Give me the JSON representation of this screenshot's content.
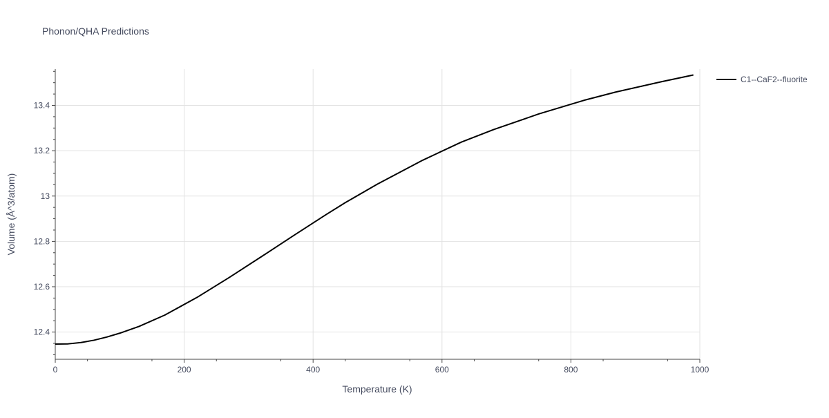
{
  "chart_data": {
    "type": "line",
    "title": "Phonon/QHA Predictions",
    "xlabel": "Temperature (K)",
    "ylabel": "Volume (Å^3/atom)",
    "xlim": [
      0,
      1000
    ],
    "ylim": [
      12.28,
      13.56
    ],
    "xticks": [
      0,
      200,
      400,
      600,
      800,
      1000
    ],
    "xtick_labels": [
      "0",
      "200",
      "400",
      "600",
      "800",
      "1000"
    ],
    "yticks": [
      12.4,
      12.6,
      12.8,
      13.0,
      13.2,
      13.4
    ],
    "ytick_labels": [
      "12.4",
      "12.6",
      "12.8",
      "13",
      "13.2",
      "13.4"
    ],
    "grid": true,
    "legend_position": "top-right-outside",
    "series": [
      {
        "name": "C1--CaF2--fluorite",
        "color": "#000000",
        "x": [
          0,
          20,
          40,
          60,
          80,
          100,
          130,
          170,
          220,
          270,
          320,
          370,
          420,
          450,
          500,
          570,
          630,
          680,
          750,
          820,
          870,
          940,
          990
        ],
        "y": [
          12.347,
          12.348,
          12.354,
          12.364,
          12.378,
          12.395,
          12.425,
          12.475,
          12.553,
          12.641,
          12.733,
          12.826,
          12.918,
          12.971,
          13.053,
          13.158,
          13.238,
          13.293,
          13.362,
          13.422,
          13.459,
          13.504,
          13.534
        ]
      }
    ]
  }
}
